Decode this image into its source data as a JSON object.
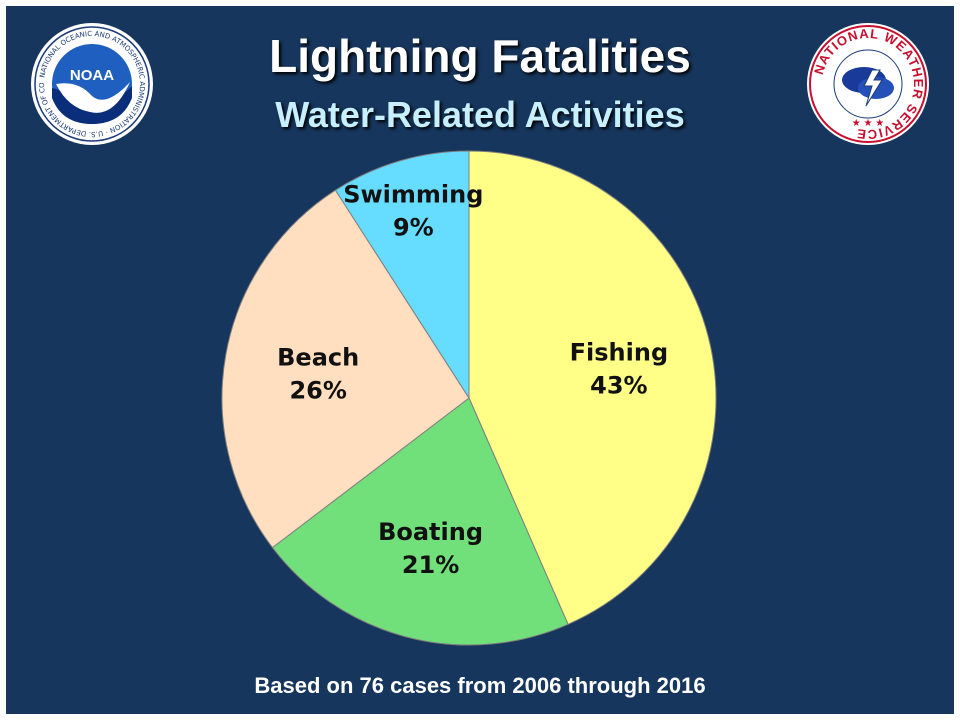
{
  "title": "Lightning Fatalities",
  "subtitle": "Water-Related Activities",
  "footnote": "Based on 76 cases from 2006 through 2016",
  "logos": {
    "left": {
      "icon": "noaa-logo",
      "text": "NOAA",
      "ring_text": "NATIONAL OCEANIC AND ATMOSPHERIC ADMINISTRATION · U.S. DEPARTMENT OF COMMERCE"
    },
    "right": {
      "icon": "national-weather-service-logo",
      "ring_text": "NATIONAL WEATHER SERVICE"
    }
  },
  "colors": {
    "background": "#17365d",
    "subtitle": "#c6efff"
  },
  "chart_data": {
    "type": "pie",
    "unit": "%",
    "slices": [
      {
        "label": "Fishing",
        "value": 43,
        "display": "43%",
        "color": "#ffff88"
      },
      {
        "label": "Boating",
        "value": 21,
        "display": "21%",
        "color": "#72e07a"
      },
      {
        "label": "Beach",
        "value": 26,
        "display": "26%",
        "color": "#ffdfc0"
      },
      {
        "label": "Swimming",
        "value": 9,
        "display": "9%",
        "color": "#66ddff"
      }
    ],
    "start_angle_deg": 0,
    "direction": "clockwise",
    "legend": "none"
  }
}
